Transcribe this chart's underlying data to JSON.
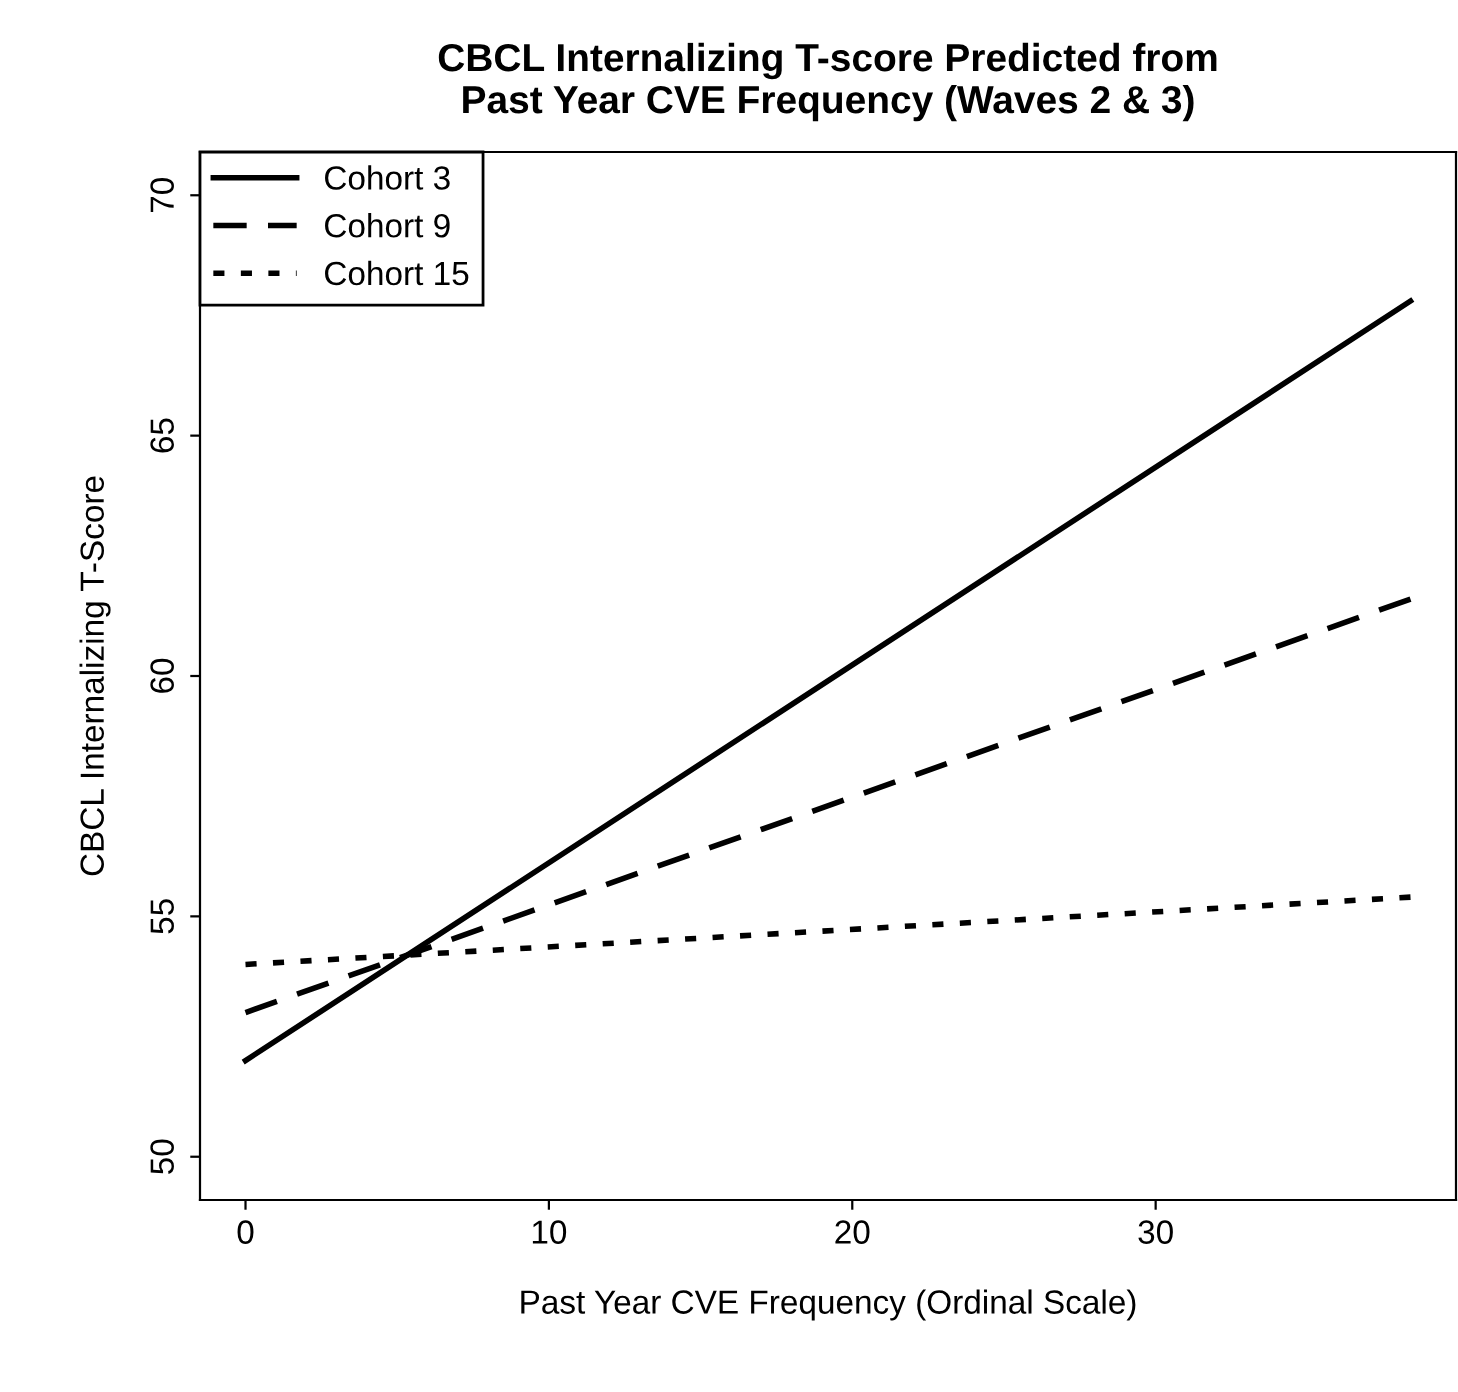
{
  "chart_data": {
    "type": "line",
    "title": "CBCL Internalizing T-score Predicted from\nPast Year CVE Frequency (Waves 2 & 3)",
    "xlabel": "Past Year CVE Frequency (Ordinal Scale)",
    "ylabel": "CBCL Internalizing T-Score",
    "x": [
      0,
      38.4
    ],
    "series": [
      {
        "name": "Cohort 3",
        "color": "#000000",
        "line_style": "solid",
        "values": [
          52.0,
          67.8
        ]
      },
      {
        "name": "Cohort 9",
        "color": "#000000",
        "line_style": "dashed",
        "values": [
          53.0,
          61.6
        ]
      },
      {
        "name": "Cohort 15",
        "color": "#000000",
        "line_style": "dotted",
        "values": [
          54.0,
          55.4
        ]
      }
    ],
    "xlim": [
      -1.5,
      39.9
    ],
    "ylim": [
      49.1,
      70.9
    ],
    "xticks": [
      0,
      10,
      20,
      30
    ],
    "yticks": [
      50,
      55,
      60,
      65,
      70
    ],
    "legend": "top left",
    "grid": false
  }
}
